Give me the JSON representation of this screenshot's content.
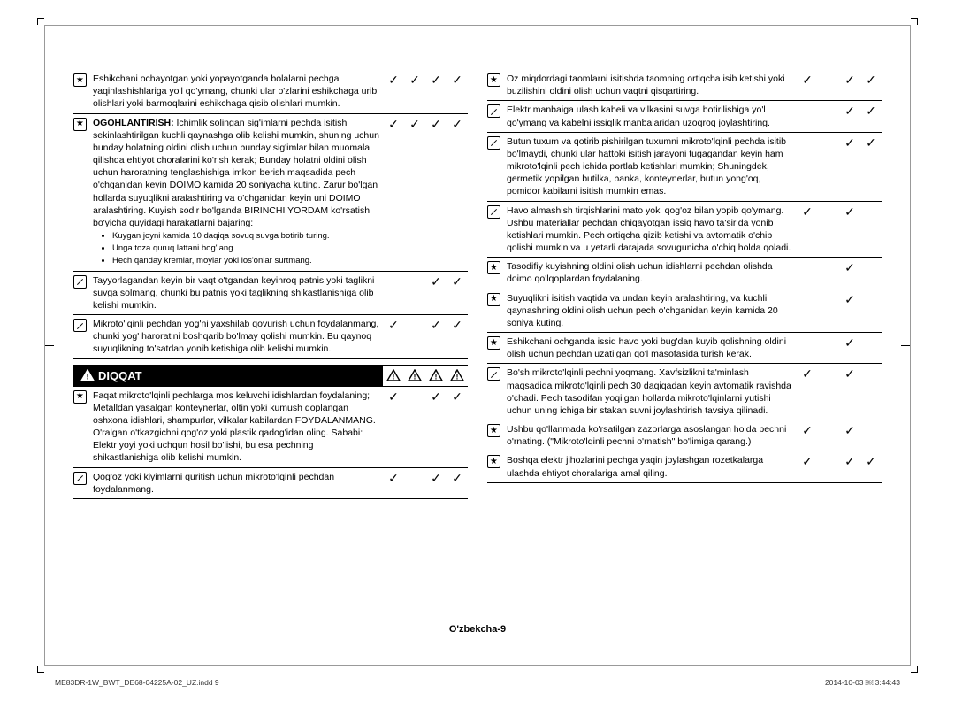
{
  "section_header": "DIQQAT",
  "footer_page": "O'zbekcha-9",
  "footer_file": "ME83DR-1W_BWT_DE68-04225A-02_UZ.indd   9",
  "footer_time": "2014-10-03   ￼ 3:44:43",
  "checkmark": "✓",
  "left_rows": [
    {
      "icon": "star",
      "text": "Eshikchani ochayotgan yoki yopayotganda bolalarni pechga yaqinlashishlariga yo'l qo'ymang, chunki ular o'zlarini eshikchaga urib olishlari yoki barmoqlarini eshikchaga qisib olishlari mumkin.",
      "checks": [
        true,
        true,
        true,
        true
      ]
    },
    {
      "icon": "star",
      "text": "<b>OGOHLANTIRISH:</b> Ichimlik solingan sig'imlarni pechda isitish sekinlashtirilgan kuchli qaynashga olib kelishi mumkin, shuning uchun bunday holatning oldini olish uchun bunday sig'imlar bilan muomala qilishda ehtiyot choralarini ko'rish kerak; Bunday holatni oldini olish uchun haroratning tenglashishiga imkon berish maqsadida pech o'chganidan keyin DOIMO kamida 20 soniyacha kuting. Zarur bo'lgan hollarda suyuqlikni aralashtiring va o'chganidan keyin uni DOIMO aralashtiring. Kuyish sodir bo'lganda BIRINCHI YORDAM ko'rsatish bo'yicha quyidagi harakatlarni bajaring:",
      "bullets": [
        "Kuygan joyni kamida 10 daqiqa sovuq suvga botirib turing.",
        "Unga toza quruq lattani bog'lang.",
        "Hech qanday kremlar, moylar yoki los'onlar surtmang."
      ],
      "checks": [
        true,
        true,
        true,
        true
      ]
    },
    {
      "icon": "slash",
      "text": "Tayyorlagandan keyin bir vaqt o'tgandan keyinroq patnis yoki taglikni suvga solmang, chunki bu patnis yoki taglikning shikastlanishiga olib kelishi mumkin.",
      "checks": [
        false,
        false,
        true,
        true
      ]
    },
    {
      "icon": "slash",
      "text": "Mikroto'lqinli pechdan yog'ni yaxshilab qovurish uchun foydalanmang, chunki yog' haroratini boshqarib bo'lmay qolishi mumkin. Bu qaynoq suyuqlikning to'satdan yonib ketishiga olib kelishi mumkin.",
      "checks": [
        true,
        false,
        true,
        true
      ]
    }
  ],
  "left_rows2": [
    {
      "icon": "star",
      "text": "Faqat mikroto'lqinli pechlarga mos keluvchi idishlardan foydalaning; Metalldan yasalgan konteynerlar, oltin yoki kumush qoplangan oshxona idishlari, shampurlar, vilkalar kabilardan FOYDALANMANG.\nO'ralgan o'tkazgichni qog'oz yoki plastik qadog'idan oling. Sababi: Elektr yoyi yoki uchqun hosil bo'lishi, bu esa pechning shikastlanishiga olib kelishi mumkin.",
      "checks": [
        true,
        false,
        true,
        true
      ]
    },
    {
      "icon": "slash",
      "text": "Qog'oz yoki kiyimlarni quritish uchun mikroto'lqinli pechdan foydalanmang.",
      "checks": [
        true,
        false,
        true,
        true
      ]
    }
  ],
  "right_rows": [
    {
      "icon": "star",
      "text": "Oz miqdordagi taomlarni isitishda taomning ortiqcha isib ketishi yoki buzilishini oldini olish uchun vaqtni qisqartiring.",
      "checks": [
        true,
        false,
        true,
        true
      ]
    },
    {
      "icon": "slash",
      "text": "Elektr manbaiga ulash kabeli va vilkasini suvga botirilishiga yo'l qo'ymang va kabelni issiqlik manbalaridan uzoqroq joylashtiring.",
      "checks": [
        false,
        false,
        true,
        true
      ]
    },
    {
      "icon": "slash",
      "text": "Butun tuxum va qotirib pishirilgan tuxumni mikroto'lqinli pechda isitib bo'lmaydi, chunki ular hattoki isitish jarayoni tugagandan keyin ham mikroto'lqinli pech ichida portlab ketishlari mumkin; Shuningdek, germetik yopilgan butilka, banka, konteynerlar, butun yong'oq, pomidor kabilarni isitish mumkin emas.",
      "checks": [
        false,
        false,
        true,
        true
      ]
    },
    {
      "icon": "slash",
      "text": "Havo almashish tirqishlarini mato yoki qog'oz bilan yopib qo'ymang. Ushbu materiallar pechdan chiqayotgan issiq havo ta'sirida yonib ketishlari mumkin. Pech ortiqcha qizib ketishi va avtomatik o'chib qolishi mumkin va u yetarli darajada sovugunicha o'chiq holda qoladi.",
      "checks": [
        true,
        false,
        true,
        false
      ]
    },
    {
      "icon": "star",
      "text": "Tasodifiy kuyishning oldini olish uchun idishlarni pechdan olishda doimo qo'lqoplardan foydalaning.",
      "checks": [
        false,
        false,
        true,
        false
      ]
    },
    {
      "icon": "star",
      "text": "Suyuqlikni isitish vaqtida va undan keyin aralashtiring, va kuchli qaynashning oldini olish uchun pech o'chganidan keyin kamida 20 soniya kuting.",
      "checks": [
        false,
        false,
        true,
        false
      ]
    },
    {
      "icon": "star",
      "text": "Eshikchani ochganda issiq havo yoki bug'dan kuyib qolishning oldini olish uchun pechdan uzatilgan qo'l masofasida turish kerak.",
      "checks": [
        false,
        false,
        true,
        false
      ]
    },
    {
      "icon": "slash",
      "text": "Bo'sh mikroto'lqinli pechni yoqmang. Xavfsizlikni ta'minlash maqsadida mikroto'lqinli pech 30 daqiqadan keyin avtomatik ravishda o'chadi. Pech tasodifan yoqilgan hollarda mikroto'lqinlarni yutishi uchun uning ichiga bir stakan suvni joylashtirish tavsiya qilinadi.",
      "checks": [
        true,
        false,
        true,
        false
      ]
    },
    {
      "icon": "star",
      "text": "Ushbu qo'llanmada ko'rsatilgan zazorlarga asoslangan holda pechni o'rnating. (\"Mikroto'lqinli pechni o'rnatish\" bo'limiga qarang.)",
      "checks": [
        true,
        false,
        true,
        false
      ]
    },
    {
      "icon": "star",
      "text": "Boshqa elektr jihozlarini pechga yaqin joylashgan rozetkalarga ulashda ehtiyot choralariga amal qiling.",
      "checks": [
        true,
        false,
        true,
        true
      ]
    }
  ]
}
